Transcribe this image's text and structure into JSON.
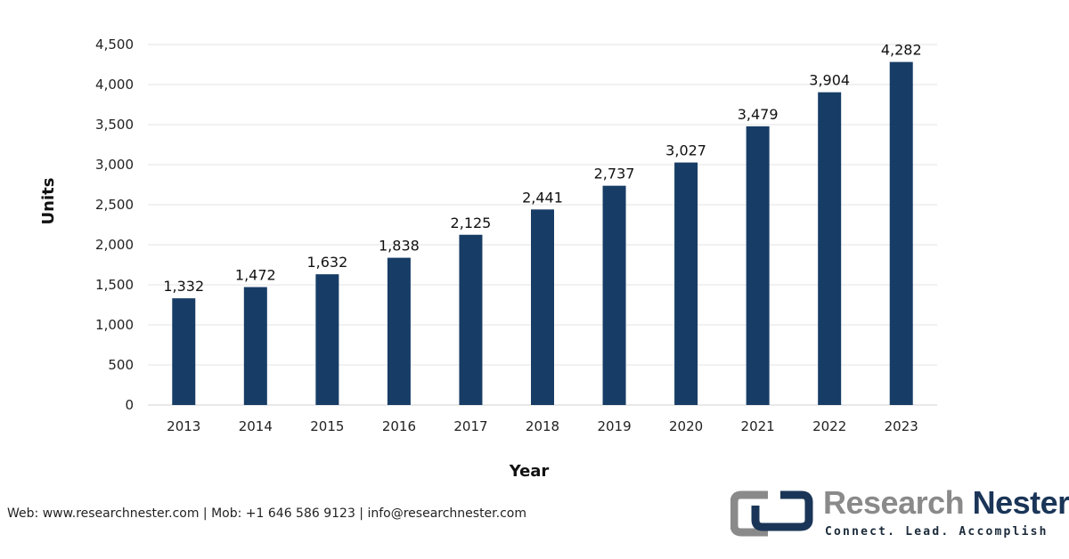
{
  "chart_data": {
    "type": "bar",
    "categories": [
      "2013",
      "2014",
      "2015",
      "2016",
      "2017",
      "2018",
      "2019",
      "2020",
      "2021",
      "2022",
      "2023"
    ],
    "values": [
      1332,
      1472,
      1632,
      1838,
      2125,
      2441,
      2737,
      3027,
      3479,
      3904,
      4282
    ],
    "value_labels": [
      "1,332",
      "1,472",
      "1,632",
      "1,838",
      "2,125",
      "2,441",
      "2,737",
      "3,027",
      "3,479",
      "3,904",
      "4,282"
    ],
    "xlabel": "Year",
    "ylabel": "Units",
    "ylim": [
      0,
      4500
    ],
    "yticks": [
      "0",
      "500",
      "1,000",
      "1,500",
      "2,000",
      "2,500",
      "3,000",
      "3,500",
      "4,000",
      "4,500"
    ],
    "grid": true,
    "bar_color": "#173d66"
  },
  "footer": "Web: www.researchnester.com | Mob: +1 646 586 9123 | info@researchnester.com",
  "logo": {
    "name_part1": "Research",
    "name_part2": "Nester",
    "tagline": "Connect. Lead. Accomplish"
  }
}
